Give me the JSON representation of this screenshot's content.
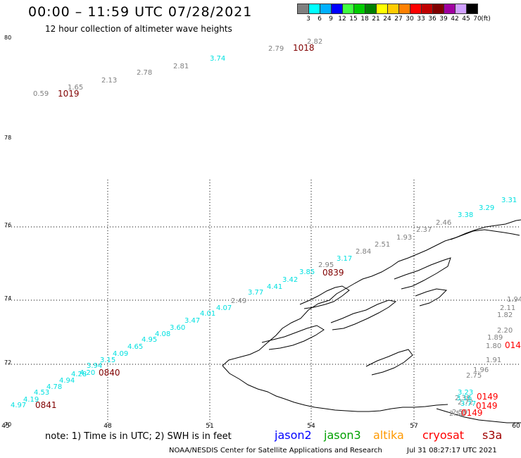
{
  "header": {
    "title": "00:00 – 11:59 UTC 07/28/2021",
    "subtitle": "12 hour collection of altimeter wave heights"
  },
  "legend": {
    "unit": "(ft)",
    "colors": [
      "#808080",
      "#00ffff",
      "#00b0ff",
      "#0000ff",
      "#40ff40",
      "#00cc00",
      "#008000",
      "#ffff00",
      "#ffcc00",
      "#ff8000",
      "#ff0000",
      "#c00000",
      "#800000",
      "#a000a0",
      "#d0a0ff",
      "#000000"
    ],
    "labels": [
      "3",
      "6",
      "9",
      "12",
      "15",
      "18",
      "21",
      "24",
      "27",
      "30",
      "33",
      "36",
      "39",
      "42",
      "45",
      "70"
    ]
  },
  "axes": {
    "lon_labels": [
      "45",
      "48",
      "51",
      "54",
      "57",
      "60"
    ],
    "lat_labels": [
      "80",
      "78",
      "76",
      "74",
      "72",
      "70"
    ]
  },
  "tracks": [
    {
      "color": "#808080",
      "labels": [
        "0.59",
        "1.65",
        "2.13",
        "2.78",
        "2.81",
        "2.79",
        "2.82"
      ]
    },
    {
      "color": "#00e0e0",
      "labels": [
        "3.74"
      ]
    },
    {
      "color": "#00e0e0",
      "labels": [
        "4.97",
        "4.19",
        "4.53",
        "4.78",
        "4.94",
        "4.28",
        "4.20",
        "3.94",
        "3.15",
        "4.09",
        "4.65",
        "4.95",
        "4.08",
        "3.60",
        "3.47",
        "4.01",
        "4.07",
        "3.77",
        "4.41",
        "3.42",
        "3.85",
        "3.17",
        "3.38",
        "3.29",
        "3.31"
      ]
    },
    {
      "color": "#808080",
      "labels": [
        "2.49",
        "2.95",
        "2.84",
        "2.51",
        "1.93",
        "2.37",
        "2.46",
        "1.94",
        "1.82",
        "2.11",
        "2.20",
        "1.80",
        "1.89",
        "1.91",
        "1.96",
        "2.75",
        "2.38",
        "2.72",
        "2.58",
        "2.59"
      ]
    },
    {
      "color": "#00e0e0",
      "labels": [
        "3.23",
        "3.16",
        "3.77"
      ]
    }
  ],
  "time_labels": [
    {
      "text": "1019",
      "color": "#800000"
    },
    {
      "text": "1018",
      "color": "#800000"
    },
    {
      "text": "0839",
      "color": "#800000"
    },
    {
      "text": "0840",
      "color": "#800000"
    },
    {
      "text": "0841",
      "color": "#800000"
    },
    {
      "text": "0149",
      "color": "#ff0000"
    },
    {
      "text": "0149",
      "color": "#ff0000"
    },
    {
      "text": "0149",
      "color": "#ff0000"
    },
    {
      "text": "014",
      "color": "#ff0000"
    }
  ],
  "footer": {
    "note": "note:  1) Time is in UTC; 2) SWH is in feet",
    "sat1": "jason2",
    "sat1_color": "#0000ff",
    "sat2": "jason3",
    "sat2_color": "#00a000",
    "sat3": "altika",
    "sat3_color": "#ff9900",
    "sat4": "cryosat",
    "sat4_color": "#ff0000",
    "sat5": "s3a",
    "sat5_color": "#a00000",
    "credit": "NOAA/NESDIS Center for Satellite Applications and Research",
    "timestamp": "Jul 31 08:27:17 UTC 2021"
  }
}
